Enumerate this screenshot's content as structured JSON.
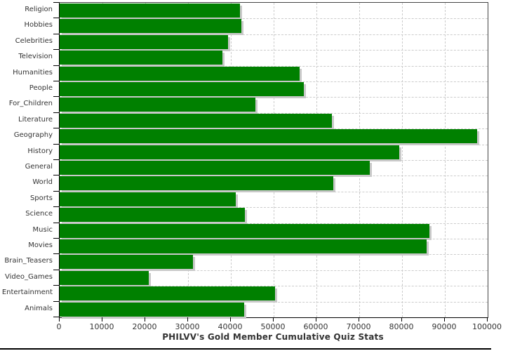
{
  "title": "PHILVV's Gold Member Cumulative Quiz Stats",
  "colors": {
    "bar": "#008000",
    "bar_shadow": "#c9c9c9",
    "gridline": "#cccccc",
    "frame": "#444444",
    "axis": "#000000",
    "label_text": "#333333"
  },
  "chart_data": {
    "type": "bar",
    "orientation": "horizontal",
    "title": "PHILVV's Gold Member Cumulative Quiz Stats",
    "xlabel": "",
    "ylabel": "",
    "xlim": [
      0,
      100000
    ],
    "grid": true,
    "legend": false,
    "categories": [
      "Religion",
      "Hobbies",
      "Celebrities",
      "Television",
      "Humanities",
      "People",
      "For_Children",
      "Literature",
      "Geography",
      "History",
      "General",
      "World",
      "Sports",
      "Science",
      "Music",
      "Movies",
      "Brain_Teasers",
      "Video_Games",
      "Entertainment",
      "Animals"
    ],
    "values": [
      42200,
      42400,
      39300,
      38000,
      56000,
      57000,
      45700,
      63600,
      97600,
      79300,
      72400,
      64000,
      41100,
      43300,
      86400,
      85800,
      31100,
      20900,
      50300,
      43100
    ],
    "x_ticks": [
      0,
      10000,
      20000,
      30000,
      40000,
      50000,
      60000,
      70000,
      80000,
      90000,
      100000
    ],
    "x_tick_labels": [
      "0",
      "10000",
      "20000",
      "30000",
      "40000",
      "50000",
      "60000",
      "70000",
      "80000",
      "90000",
      "100000"
    ]
  }
}
